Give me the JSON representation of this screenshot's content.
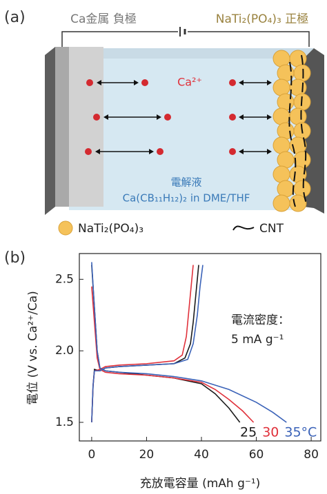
{
  "panel_a": {
    "label": "(a)",
    "anode": "Ca金属 負極",
    "cathode": "NaTi₂(PO₄)₃ 正極",
    "ion": "Ca²⁺",
    "electrolyte": "電解液",
    "electrolyte_formula": "Ca(CB₁₁H₁₂)₂ in DME/THF",
    "legend": [
      "NaTi₂(PO₄)₃",
      "CNT"
    ]
  },
  "chart_data": {
    "type": "line",
    "panel_label": "(b)",
    "xlabel": "充放電容量 (mAh g⁻¹)",
    "ylabel": "電位 (V vs. Ca²⁺/Ca)",
    "annotation": [
      "電流密度：",
      "5 mA g⁻¹"
    ],
    "xlim": [
      -4.5,
      83.5
    ],
    "ylim": [
      1.37,
      2.68
    ],
    "xticks": [
      0,
      20,
      40,
      60,
      80
    ],
    "yticks": [
      1.5,
      {
        "value": 2,
        "label": "2.0"
      },
      2.5
    ],
    "series": [
      {
        "name": "25",
        "color": "#1a1a1a",
        "x": [
          0,
          1,
          2,
          3,
          5,
          10,
          20,
          30,
          40,
          45,
          50,
          54
        ],
        "values": [
          2.6,
          2.3,
          2.0,
          1.88,
          1.86,
          1.85,
          1.83,
          1.81,
          1.77,
          1.7,
          1.6,
          1.5
        ],
        "charge_x": [
          0,
          0.5,
          1,
          3,
          5,
          10,
          20,
          30,
          34,
          36,
          37,
          38,
          39
        ],
        "charge_values": [
          1.5,
          1.75,
          1.87,
          1.86,
          1.88,
          1.89,
          1.9,
          1.91,
          1.95,
          2.05,
          2.2,
          2.4,
          2.6
        ]
      },
      {
        "name": "30",
        "color": "#e0303a",
        "x": [
          0,
          1,
          2,
          3,
          5,
          10,
          20,
          30,
          40,
          45,
          50,
          55,
          59
        ],
        "values": [
          2.45,
          2.2,
          1.95,
          1.87,
          1.85,
          1.84,
          1.83,
          1.81,
          1.78,
          1.73,
          1.66,
          1.58,
          1.5
        ],
        "charge_x": [
          0,
          0.5,
          1,
          3,
          5,
          10,
          20,
          30,
          33,
          34.5,
          35.5,
          36.5,
          37
        ],
        "charge_values": [
          1.5,
          1.76,
          1.86,
          1.87,
          1.89,
          1.9,
          1.91,
          1.93,
          1.97,
          2.1,
          2.3,
          2.5,
          2.6
        ]
      },
      {
        "name": "35°C",
        "color": "#3a62b8",
        "x": [
          0,
          1,
          2,
          3,
          5,
          10,
          20,
          30,
          40,
          50,
          60,
          66,
          71
        ],
        "values": [
          2.62,
          2.3,
          2.0,
          1.88,
          1.86,
          1.85,
          1.84,
          1.82,
          1.79,
          1.73,
          1.64,
          1.57,
          1.5
        ],
        "charge_x": [
          0,
          0.5,
          1,
          3,
          5,
          10,
          20,
          30,
          35,
          37,
          38.5,
          39.5,
          40.5
        ],
        "charge_values": [
          1.5,
          1.76,
          1.86,
          1.86,
          1.88,
          1.89,
          1.9,
          1.91,
          1.94,
          2.05,
          2.25,
          2.45,
          2.6
        ]
      }
    ]
  }
}
